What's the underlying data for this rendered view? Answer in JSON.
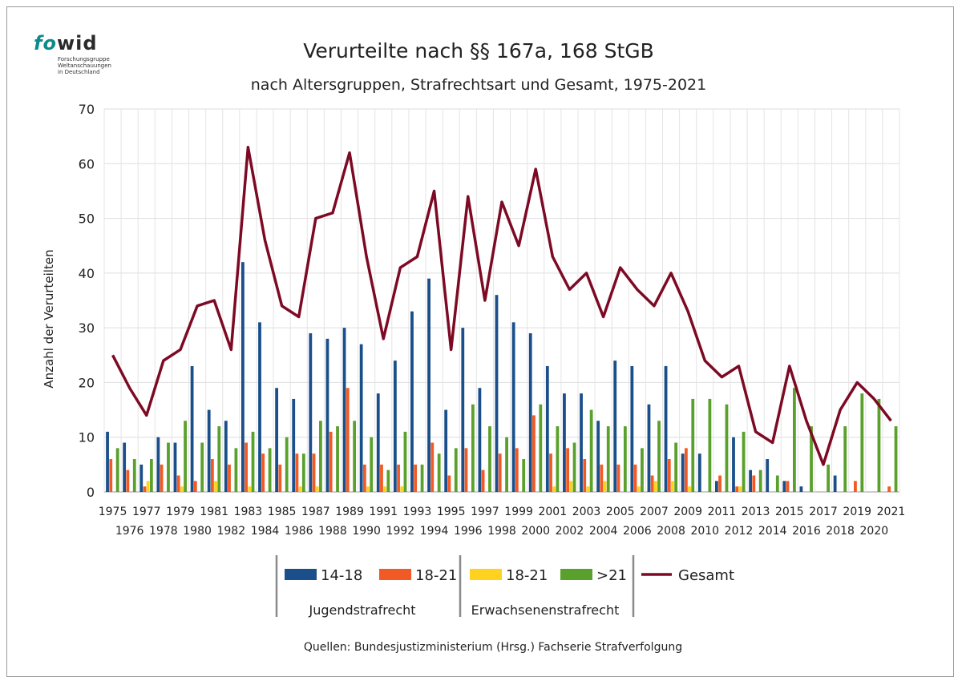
{
  "logo": {
    "word_a": "fo",
    "word_b": "wid",
    "sub_lines": [
      "Forschungsgruppe",
      "Weltanschauungen",
      "in Deutschland"
    ]
  },
  "chart_data": {
    "type": "bar",
    "title": "Verurteilte nach §§ 167a, 168 StGB",
    "subtitle": "nach Altersgruppen, Strafrechtsart und Gesamt, 1975-2021",
    "ylabel": "Anzahl der Verurteilten",
    "ylim": [
      0,
      70
    ],
    "yticks": [
      0,
      10,
      20,
      30,
      40,
      50,
      60,
      70
    ],
    "grid": true,
    "legend_position": "bottom",
    "categories": [
      "1975",
      "1976",
      "1977",
      "1978",
      "1979",
      "1980",
      "1981",
      "1982",
      "1983",
      "1984",
      "1985",
      "1986",
      "1987",
      "1988",
      "1989",
      "1990",
      "1991",
      "1992",
      "1993",
      "1994",
      "1995",
      "1996",
      "1997",
      "1998",
      "1999",
      "2000",
      "2001",
      "2002",
      "2003",
      "2004",
      "2005",
      "2006",
      "2007",
      "2008",
      "2009",
      "2010",
      "2011",
      "2012",
      "2013",
      "2014",
      "2015",
      "2016",
      "2017",
      "2018",
      "2019",
      "2020",
      "2021"
    ],
    "series": [
      {
        "name": "14-18",
        "type": "bar",
        "color": "#1a4f8b",
        "values": [
          11,
          9,
          5,
          10,
          9,
          23,
          15,
          13,
          42,
          31,
          19,
          17,
          29,
          28,
          30,
          27,
          18,
          24,
          33,
          39,
          15,
          30,
          19,
          36,
          31,
          29,
          23,
          18,
          18,
          13,
          24,
          23,
          16,
          23,
          7,
          7,
          2,
          10,
          4,
          6,
          2,
          1,
          0,
          3,
          0,
          0,
          0
        ]
      },
      {
        "name": "18-21",
        "type": "bar",
        "color": "#f15a24",
        "values": [
          6,
          4,
          1,
          5,
          3,
          2,
          6,
          5,
          9,
          7,
          5,
          7,
          7,
          11,
          19,
          5,
          5,
          5,
          5,
          9,
          3,
          8,
          4,
          7,
          8,
          14,
          7,
          8,
          6,
          5,
          5,
          5,
          3,
          6,
          8,
          0,
          3,
          1,
          3,
          0,
          2,
          0,
          0,
          0,
          2,
          0,
          1
        ]
      },
      {
        "name": "18-21",
        "type": "bar",
        "color": "#ffd21f",
        "values": [
          0,
          0,
          2,
          0,
          1,
          0,
          2,
          0,
          1,
          0,
          0,
          1,
          1,
          0,
          0,
          1,
          1,
          1,
          0,
          0,
          0,
          0,
          0,
          0,
          0,
          0,
          1,
          2,
          1,
          2,
          0,
          1,
          2,
          2,
          1,
          0,
          0,
          1,
          0,
          0,
          0,
          0,
          0,
          0,
          0,
          0,
          0
        ]
      },
      {
        "name": ">21",
        "type": "bar",
        "color": "#5aa02c",
        "values": [
          8,
          6,
          6,
          9,
          13,
          9,
          12,
          8,
          11,
          8,
          10,
          7,
          13,
          12,
          13,
          10,
          4,
          11,
          5,
          7,
          8,
          16,
          12,
          10,
          6,
          16,
          12,
          9,
          15,
          12,
          12,
          8,
          13,
          9,
          17,
          17,
          16,
          11,
          4,
          3,
          19,
          12,
          5,
          12,
          18,
          17,
          12
        ]
      },
      {
        "name": "Gesamt",
        "type": "line",
        "color": "#7d0a24",
        "values": [
          25,
          19,
          14,
          24,
          26,
          34,
          35,
          26,
          63,
          46,
          34,
          32,
          50,
          51,
          62,
          43,
          28,
          41,
          43,
          55,
          26,
          54,
          35,
          53,
          45,
          59,
          43,
          37,
          40,
          32,
          41,
          37,
          34,
          40,
          33,
          24,
          21,
          23,
          11,
          9,
          23,
          13,
          5,
          15,
          20,
          17,
          13
        ]
      }
    ],
    "legend_groups": [
      {
        "label": "Jugendstrafrecht",
        "series": [
          0,
          1
        ]
      },
      {
        "label": "Erwachsenenstrafrecht",
        "series": [
          2,
          3
        ]
      }
    ],
    "source": "Quellen: Bundesjustizministerium (Hrsg.) Fachserie Strafverfolgung"
  }
}
